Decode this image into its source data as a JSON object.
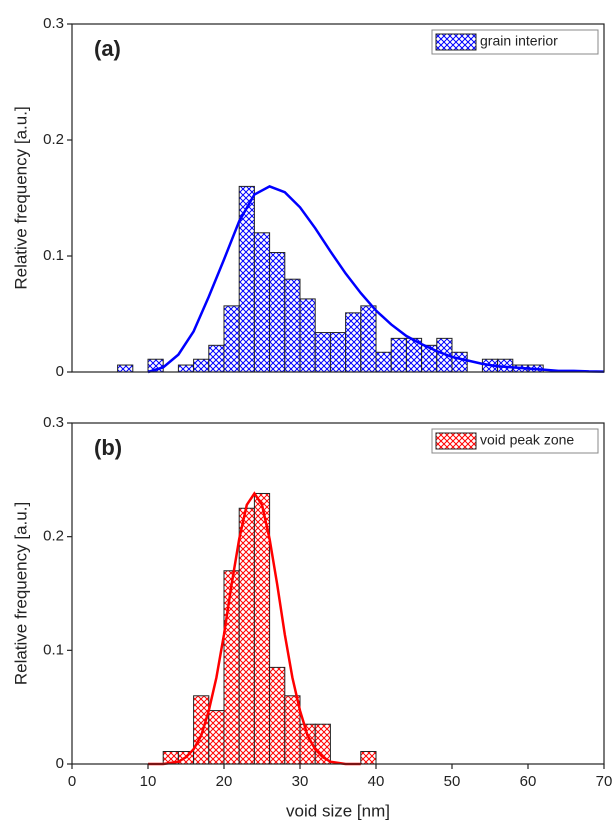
{
  "chart_data": [
    {
      "type": "histogram",
      "label": "(a)",
      "ylabel": "Relative frequency [a.u.]",
      "xlim": [
        0,
        70
      ],
      "ylim": [
        0,
        0.3
      ],
      "yticks": [
        0,
        0.1,
        0.2,
        0.3
      ],
      "legend": "upper right",
      "series": [
        {
          "name": "grain interior",
          "color": "#0000ff",
          "bins": [
            6,
            8,
            10,
            12,
            14,
            16,
            18,
            20,
            22,
            24,
            26,
            28,
            30,
            32,
            34,
            36,
            38,
            40,
            42,
            44,
            46,
            48,
            50,
            52,
            54,
            56,
            58,
            60,
            62
          ],
          "values": [
            0.006,
            0,
            0.011,
            0,
            0.006,
            0.011,
            0.023,
            0.057,
            0.16,
            0.12,
            0.103,
            0.08,
            0.063,
            0.034,
            0.034,
            0.051,
            0.057,
            0.017,
            0.029,
            0.029,
            0.023,
            0.029,
            0.017,
            0,
            0.011,
            0.011,
            0.006,
            0.006
          ]
        },
        {
          "type": "line",
          "color": "#0000ff",
          "x": [
            10,
            12,
            14,
            16,
            18,
            20,
            22,
            24,
            26,
            28,
            30,
            32,
            34,
            36,
            38,
            40,
            42,
            44,
            46,
            48,
            50,
            52,
            54,
            56,
            58,
            60,
            62,
            64,
            66,
            68,
            70
          ],
          "values": [
            0,
            0.004,
            0.015,
            0.035,
            0.065,
            0.097,
            0.13,
            0.153,
            0.16,
            0.155,
            0.142,
            0.124,
            0.104,
            0.085,
            0.068,
            0.053,
            0.041,
            0.031,
            0.024,
            0.018,
            0.013,
            0.01,
            0.007,
            0.005,
            0.004,
            0.003,
            0.002,
            0.001,
            0.001,
            0.0005,
            0.0003
          ]
        }
      ]
    },
    {
      "type": "histogram",
      "label": "(b)",
      "ylabel": "Relative frequency [a.u.]",
      "xlabel": "void size [nm]",
      "xlim": [
        0,
        70
      ],
      "xticks": [
        0,
        10,
        20,
        30,
        40,
        50,
        60,
        70
      ],
      "ylim": [
        0,
        0.3
      ],
      "yticks": [
        0,
        0.1,
        0.2,
        0.3
      ],
      "legend": "upper right",
      "series": [
        {
          "name": "void peak zone",
          "color": "#ff0000",
          "bins": [
            12,
            14,
            16,
            18,
            20,
            22,
            24,
            26,
            28,
            30,
            32,
            34,
            36,
            38,
            40
          ],
          "values": [
            0.011,
            0.011,
            0.06,
            0.047,
            0.17,
            0.225,
            0.238,
            0.085,
            0.06,
            0.035,
            0.035,
            0,
            0,
            0.011
          ]
        },
        {
          "type": "line",
          "color": "#ff0000",
          "x": [
            10,
            11,
            12,
            13,
            14,
            15,
            16,
            17,
            18,
            19,
            20,
            21,
            22,
            23,
            24,
            25,
            26,
            27,
            28,
            29,
            30,
            31,
            32,
            33,
            34,
            35,
            36,
            37,
            38
          ],
          "values": [
            0,
            0,
            0,
            0.001,
            0.002,
            0.006,
            0.013,
            0.025,
            0.047,
            0.076,
            0.114,
            0.158,
            0.198,
            0.228,
            0.238,
            0.228,
            0.198,
            0.158,
            0.114,
            0.076,
            0.047,
            0.025,
            0.013,
            0.006,
            0.002,
            0.001,
            0,
            0,
            0
          ]
        }
      ]
    }
  ]
}
